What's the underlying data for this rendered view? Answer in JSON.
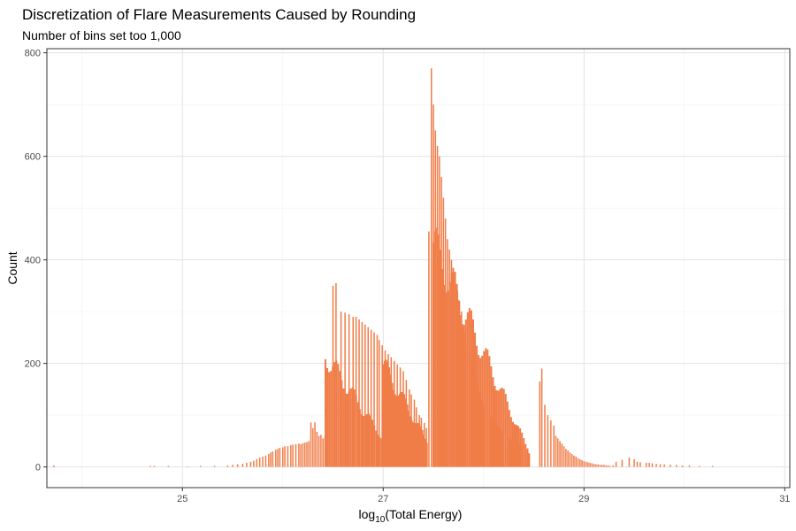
{
  "chart_data": {
    "type": "bar",
    "title": "Discretization of Flare Measurements Caused by Rounding",
    "subtitle": "Number of bins set too 1,000",
    "xlabel": {
      "prefix": "log",
      "subscript": "10",
      "suffix": "(Total Energy)"
    },
    "ylabel": "Count",
    "xlim": [
      23.65,
      31.05
    ],
    "ylim": [
      -40,
      808
    ],
    "x_ticks": [
      25,
      27,
      29,
      31
    ],
    "y_ticks": [
      0,
      200,
      400,
      600,
      800
    ],
    "grid": true,
    "bar_color": "#F07C47",
    "bars": [
      [
        23.72,
        3
      ],
      [
        24.68,
        2
      ],
      [
        24.72,
        2
      ],
      [
        24.86,
        2
      ],
      [
        25.05,
        1
      ],
      [
        25.18,
        2
      ],
      [
        25.32,
        2
      ],
      [
        25.45,
        3
      ],
      [
        25.5,
        4
      ],
      [
        25.55,
        5
      ],
      [
        25.6,
        6
      ],
      [
        25.64,
        8
      ],
      [
        25.68,
        10
      ],
      [
        25.71,
        12
      ],
      [
        25.74,
        15
      ],
      [
        25.77,
        18
      ],
      [
        25.8,
        20
      ],
      [
        25.83,
        22
      ],
      [
        25.86,
        25
      ],
      [
        25.88,
        28
      ],
      [
        25.9,
        30
      ],
      [
        25.93,
        33
      ],
      [
        25.95,
        35
      ],
      [
        25.97,
        37
      ],
      [
        26.0,
        38
      ],
      [
        26.02,
        40
      ],
      [
        26.05,
        40
      ],
      [
        26.08,
        42
      ],
      [
        26.1,
        43
      ],
      [
        26.13,
        44
      ],
      [
        26.16,
        45
      ],
      [
        26.18,
        44
      ],
      [
        26.2,
        46
      ],
      [
        26.22,
        47
      ],
      [
        26.24,
        48
      ],
      [
        26.26,
        50
      ],
      [
        26.28,
        86
      ],
      [
        26.3,
        75
      ],
      [
        26.32,
        86
      ],
      [
        26.34,
        68
      ],
      [
        26.36,
        60
      ],
      [
        26.38,
        62
      ],
      [
        26.4,
        55
      ],
      [
        26.42,
        58
      ],
      [
        26.5,
        350
      ],
      [
        26.53,
        355
      ],
      [
        26.58,
        300
      ],
      [
        26.62,
        298
      ],
      [
        26.66,
        295
      ],
      [
        26.7,
        290
      ],
      [
        26.73,
        290
      ],
      [
        26.76,
        285
      ],
      [
        26.79,
        280
      ],
      [
        26.82,
        275
      ],
      [
        26.85,
        270
      ],
      [
        26.88,
        265
      ],
      [
        26.91,
        260
      ],
      [
        26.94,
        255
      ],
      [
        26.96,
        245
      ],
      [
        26.99,
        235
      ],
      [
        27.02,
        225
      ],
      [
        27.05,
        218
      ],
      [
        27.08,
        212
      ],
      [
        27.11,
        205
      ],
      [
        27.14,
        198
      ],
      [
        27.17,
        192
      ],
      [
        27.2,
        185
      ],
      [
        27.23,
        168
      ],
      [
        27.26,
        150
      ],
      [
        27.28,
        140
      ],
      [
        27.31,
        130
      ],
      [
        27.33,
        115
      ],
      [
        27.36,
        100
      ],
      [
        27.38,
        95
      ],
      [
        27.41,
        85
      ],
      [
        27.43,
        75
      ],
      [
        27.455,
        455
      ],
      [
        27.48,
        770
      ],
      [
        27.5,
        700
      ],
      [
        27.52,
        650
      ],
      [
        27.54,
        620
      ],
      [
        27.56,
        600
      ],
      [
        27.58,
        560
      ],
      [
        27.6,
        520
      ],
      [
        27.62,
        480
      ],
      [
        27.64,
        440
      ],
      [
        27.66,
        420
      ],
      [
        27.68,
        400
      ],
      [
        27.7,
        380
      ],
      [
        27.72,
        350
      ],
      [
        27.74,
        340
      ],
      [
        27.76,
        320
      ],
      [
        27.78,
        300
      ],
      [
        27.8,
        270
      ],
      [
        27.82,
        260
      ],
      [
        27.84,
        240
      ],
      [
        27.86,
        220
      ],
      [
        27.88,
        200
      ],
      [
        27.9,
        190
      ],
      [
        27.92,
        180
      ],
      [
        27.94,
        160
      ],
      [
        27.96,
        145
      ],
      [
        27.98,
        130
      ],
      [
        28.0,
        120
      ],
      [
        28.02,
        115
      ],
      [
        28.04,
        110
      ],
      [
        28.06,
        100
      ],
      [
        28.08,
        95
      ],
      [
        28.1,
        90
      ],
      [
        28.12,
        85
      ],
      [
        28.14,
        80
      ],
      [
        28.16,
        75
      ],
      [
        28.18,
        70
      ],
      [
        28.2,
        65
      ],
      [
        28.22,
        60
      ],
      [
        28.24,
        58
      ],
      [
        28.26,
        55
      ],
      [
        28.28,
        52
      ],
      [
        28.3,
        50
      ],
      [
        28.32,
        48
      ],
      [
        28.34,
        46
      ],
      [
        28.36,
        44
      ],
      [
        28.38,
        42
      ],
      [
        28.4,
        40
      ],
      [
        28.42,
        38
      ],
      [
        28.44,
        36
      ],
      [
        28.56,
        165
      ],
      [
        28.58,
        190
      ],
      [
        28.61,
        120
      ],
      [
        28.64,
        100
      ],
      [
        28.67,
        90
      ],
      [
        28.7,
        80
      ],
      [
        28.72,
        60
      ],
      [
        28.74,
        55
      ],
      [
        28.76,
        50
      ],
      [
        28.78,
        45
      ],
      [
        28.8,
        40
      ],
      [
        28.82,
        35
      ],
      [
        28.84,
        32
      ],
      [
        28.86,
        28
      ],
      [
        28.88,
        25
      ],
      [
        28.9,
        22
      ],
      [
        28.92,
        20
      ],
      [
        28.94,
        17
      ],
      [
        28.96,
        15
      ],
      [
        28.98,
        13
      ],
      [
        29.0,
        11
      ],
      [
        29.02,
        10
      ],
      [
        29.04,
        9
      ],
      [
        29.06,
        8
      ],
      [
        29.08,
        7
      ],
      [
        29.1,
        6
      ],
      [
        29.12,
        5
      ],
      [
        29.14,
        5
      ],
      [
        29.16,
        4
      ],
      [
        29.18,
        4
      ],
      [
        29.2,
        4
      ],
      [
        29.22,
        3
      ],
      [
        29.24,
        3
      ],
      [
        29.26,
        2
      ],
      [
        29.29,
        3
      ],
      [
        29.32,
        10
      ],
      [
        29.38,
        14
      ],
      [
        29.45,
        18
      ],
      [
        29.5,
        15
      ],
      [
        29.53,
        10
      ],
      [
        29.56,
        9
      ],
      [
        29.62,
        8
      ],
      [
        29.65,
        8
      ],
      [
        29.68,
        7
      ],
      [
        29.72,
        6
      ],
      [
        29.76,
        5
      ],
      [
        29.8,
        5
      ],
      [
        29.86,
        4
      ],
      [
        29.92,
        4
      ],
      [
        29.98,
        3
      ],
      [
        30.05,
        3
      ],
      [
        30.15,
        2
      ],
      [
        30.28,
        2
      ]
    ],
    "bands": [
      {
        "x0": 26.425,
        "x1": 27.0,
        "y0": 240,
        "y1": 60,
        "step": 0.018
      },
      {
        "x0": 27.0,
        "x1": 27.45,
        "y0": 220,
        "y1": 50,
        "step": 0.015
      },
      {
        "x0": 27.5,
        "x1": 28.46,
        "y0": 480,
        "y1": 30,
        "step": 0.018
      }
    ]
  }
}
